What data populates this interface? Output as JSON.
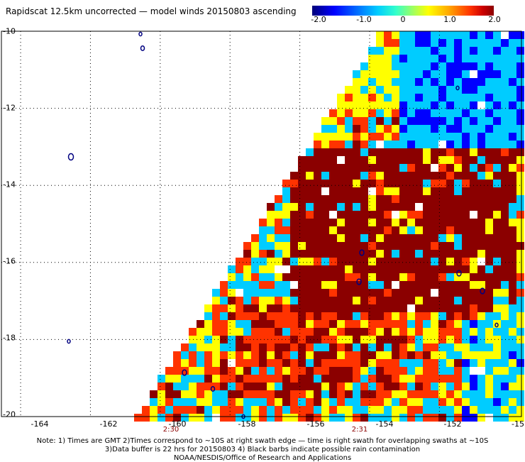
{
  "title": "Rapidscat 12.5km uncorrected — model winds 20150803 ascending",
  "colorbar": {
    "ticks": [
      "-2.0",
      "-1.0",
      "0",
      "1.0",
      "2.0"
    ],
    "colors": [
      "#00007a",
      "#0000ff",
      "#00ccff",
      "#ffff00",
      "#ff3300",
      "#8b0000"
    ]
  },
  "axes": {
    "x_ticks": [
      "-164",
      "-162",
      "-160",
      "-158",
      "-156",
      "-154",
      "-152",
      "-15"
    ],
    "y_ticks": [
      "-10",
      "-12",
      "-14",
      "-16",
      "-18",
      "-20"
    ]
  },
  "time_labels": [
    "2:30",
    "2:31"
  ],
  "notes": {
    "line1": "Note: 1) Times are GMT 2)Times correspond to ~10S at right swath edge — time is right swath for overlapping swaths at ~10S",
    "line2": "3)Data buffer is 22 hrs for 20150803 4) Black barbs indicate possible rain contamination",
    "line3": "NOAA/NESDIS/Office of Research and Applications"
  }
}
